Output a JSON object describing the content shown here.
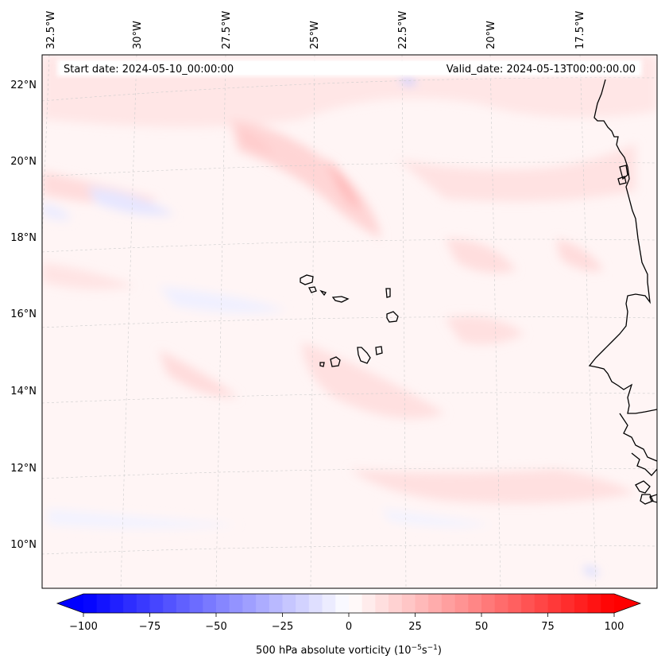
{
  "map": {
    "start_date": "Start date: 2024-05-10_00:00:00",
    "valid_date": "Valid_date: 2024-05-13T00:00:00.00",
    "lon_labels": [
      "32.5°W",
      "30°W",
      "27.5°W",
      "25°W",
      "22.5°W",
      "20°W",
      "17.5°W"
    ],
    "lat_labels": [
      "22°N",
      "20°N",
      "18°N",
      "16°N",
      "14°N",
      "12°N",
      "10°N"
    ],
    "field": "500 hPa absolute vorticity",
    "colors": {
      "negative": "#0000ff",
      "neutral": "#ffffff",
      "positive": "#ff0000",
      "coastline": "#000000"
    }
  },
  "colorbar": {
    "ticks": [
      "−100",
      "−75",
      "−50",
      "−25",
      "0",
      "25",
      "50",
      "75",
      "100"
    ],
    "label_prefix": "500 hPa absolute vorticity (10",
    "label_exp1": "−5",
    "label_mid": "s",
    "label_exp2": "−1",
    "label_suffix": ")",
    "range": [
      -100,
      100
    ]
  }
}
